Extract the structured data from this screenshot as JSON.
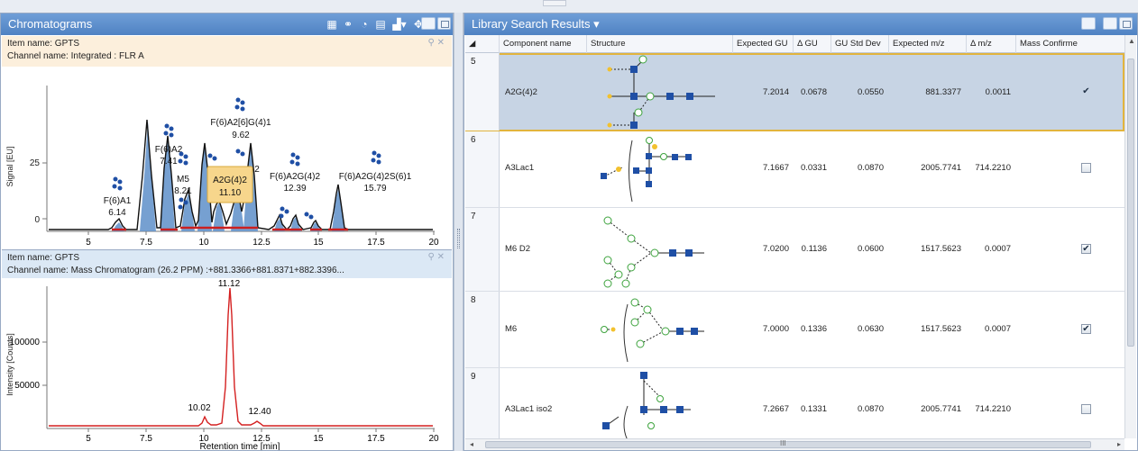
{
  "left": {
    "title": "Chromatograms",
    "toolbar_icons": [
      "zoom-icon",
      "link-icon",
      "paint-icon",
      "table-icon",
      "chart-icon",
      "pan-icon"
    ],
    "top": {
      "item_name": "Item name: GPTS",
      "channel_name": "Channel name: Integrated : FLR A",
      "ylabel": "Signal [EU]",
      "yticks": [
        "25"
      ],
      "xticks": [
        "5",
        "7.5",
        "10",
        "12.5",
        "15",
        "17.5",
        "20"
      ],
      "peaks": [
        {
          "name": "F(6)A1",
          "rt": "6.14"
        },
        {
          "name": "F(6)A2",
          "rt": "7.41"
        },
        {
          "name": "M5",
          "rt": "8.21"
        },
        {
          "name": "F(6)A2[6]G(4)1",
          "rt": "9.62"
        },
        {
          "name": "A2G(4)2",
          "rt": "11.10"
        },
        {
          "name": "F(6)A2G(4)2",
          "rt": "12.39"
        },
        {
          "name": "F(6)A2G(4)2S(6)1",
          "rt": "15.79"
        }
      ],
      "partial_label": "2"
    },
    "bottom": {
      "item_name": "Item name: GPTS",
      "channel_name": "Channel name: Mass Chromatogram (26.2 PPM) :+881.3366+881.8371+882.3396...",
      "ylabel": "Intensity [Counts]",
      "xlabel": "Retention time [min]",
      "yticks": [
        "100000",
        "50000"
      ],
      "xticks": [
        "5",
        "7.5",
        "10",
        "12.5",
        "15",
        "17.5",
        "20"
      ],
      "peak_labels": [
        "11.12",
        "10.02",
        "12.40"
      ]
    }
  },
  "right": {
    "title": "Library Search Results ▾",
    "columns": [
      "Component name",
      "Structure",
      "Expected GU",
      "Δ GU",
      "GU Std Dev",
      "Expected m/z",
      "Δ m/z",
      "Mass Confirme"
    ],
    "rows": [
      {
        "num": "5",
        "name": "A2G(4)2",
        "gu": "7.2014",
        "dgu": "0.0678",
        "std": "0.0550",
        "mz": "881.3377",
        "dmz": "0.0011",
        "confirmed": "✔"
      },
      {
        "num": "6",
        "name": "A3Lac1",
        "gu": "7.1667",
        "dgu": "0.0331",
        "std": "0.0870",
        "mz": "2005.7741",
        "dmz": "714.2210",
        "confirmed": ""
      },
      {
        "num": "7",
        "name": "M6 D2",
        "gu": "7.0200",
        "dgu": "0.1136",
        "std": "0.0600",
        "mz": "1517.5623",
        "dmz": "0.0007",
        "confirmed": "✔"
      },
      {
        "num": "8",
        "name": "M6",
        "gu": "7.0000",
        "dgu": "0.1336",
        "std": "0.0630",
        "mz": "1517.5623",
        "dmz": "0.0007",
        "confirmed": "✔"
      },
      {
        "num": "9",
        "name": "A3Lac1 iso2",
        "gu": "7.2667",
        "dgu": "0.1331",
        "std": "0.0870",
        "mz": "2005.7741",
        "dmz": "714.2210",
        "confirmed": ""
      }
    ],
    "scroll_mark": "III"
  },
  "colors": {
    "title_bar": "#4f82c3",
    "peak_black": "#111111",
    "peak_blue": "#5e8fc9",
    "baseline_red": "#cc1f1f",
    "glycan_blue": "#1f4fa5",
    "glycan_green": "#3da33d",
    "glycan_yellow": "#f2c12e",
    "selection": "#e2b43d"
  }
}
